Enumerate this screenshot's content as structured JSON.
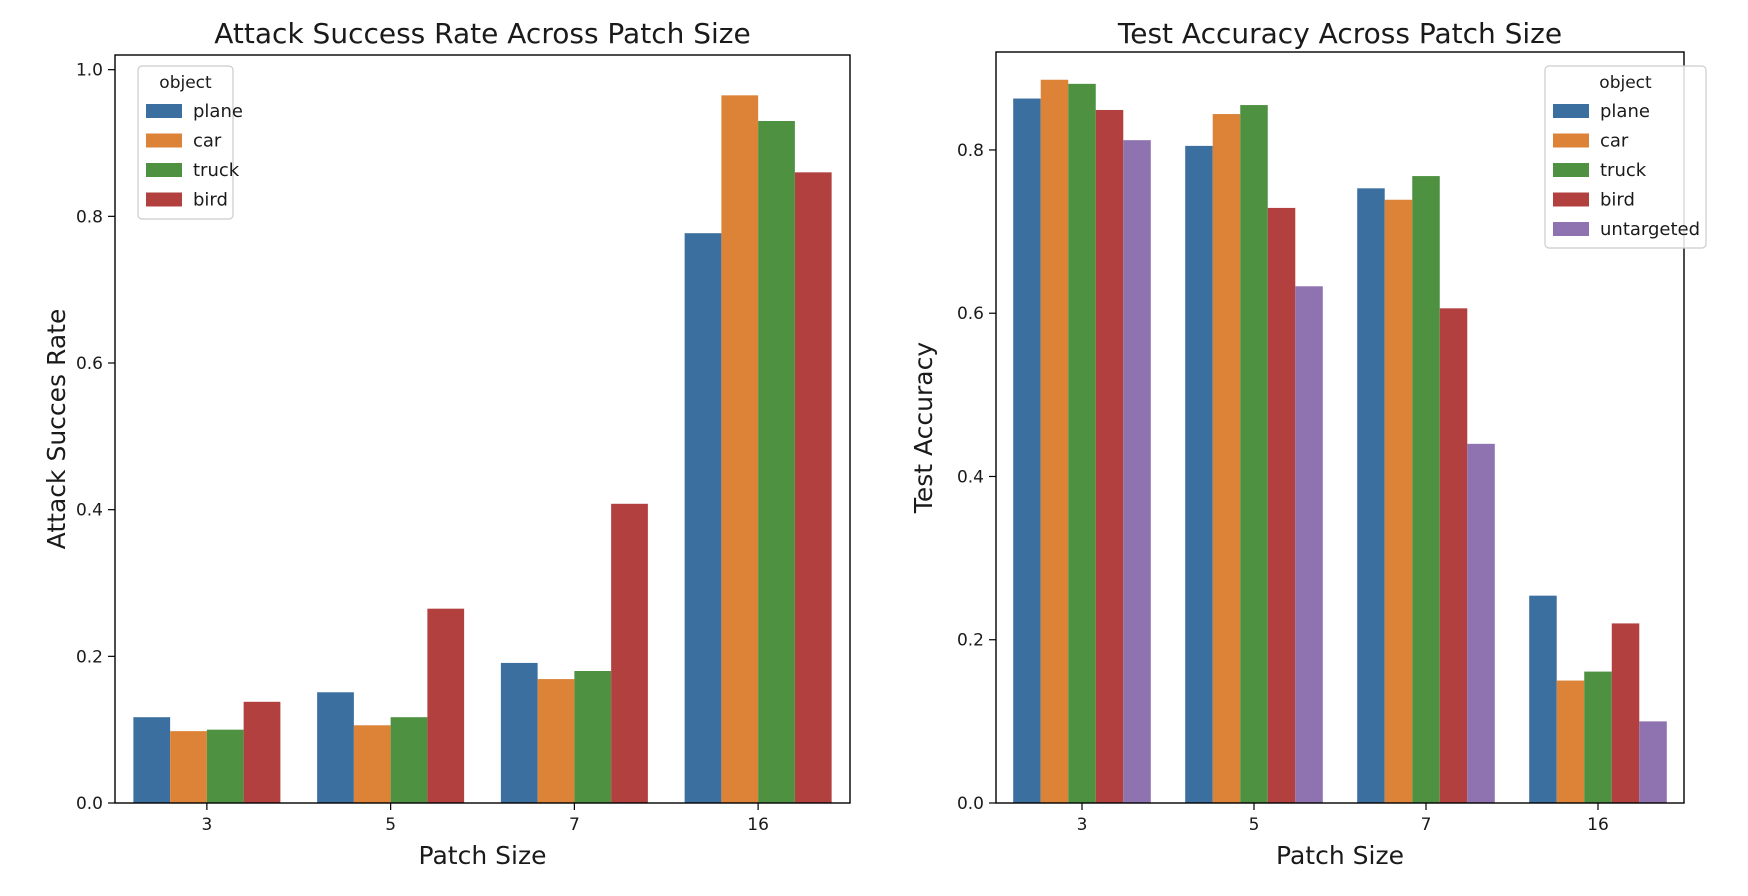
{
  "chart_data": [
    {
      "type": "bar",
      "title": "Attack Success Rate Across Patch Size",
      "xlabel": "Patch Size",
      "ylabel": "Attack Succes Rate",
      "categories": [
        "3",
        "5",
        "7",
        "16"
      ],
      "ylim": [
        0,
        1.02
      ],
      "yticks": [
        0.0,
        0.2,
        0.4,
        0.6,
        0.8,
        1.0
      ],
      "ytick_labels": [
        "0.0",
        "0.2",
        "0.4",
        "0.6",
        "0.8",
        "1.0"
      ],
      "grid": false,
      "legend": {
        "title": "object",
        "placement": "top-left"
      },
      "series": [
        {
          "name": "plane",
          "color": "#3b6fa0",
          "values": [
            0.117,
            0.151,
            0.191,
            0.777
          ]
        },
        {
          "name": "car",
          "color": "#dd8338",
          "values": [
            0.098,
            0.106,
            0.169,
            0.965
          ]
        },
        {
          "name": "truck",
          "color": "#4d9141",
          "values": [
            0.1,
            0.117,
            0.18,
            0.93
          ]
        },
        {
          "name": "bird",
          "color": "#b2403f",
          "values": [
            0.138,
            0.265,
            0.408,
            0.86
          ]
        }
      ]
    },
    {
      "type": "bar",
      "title": "Test Accuracy Across Patch Size",
      "xlabel": "Patch Size",
      "ylabel": "Test Accuracy",
      "categories": [
        "3",
        "5",
        "7",
        "16"
      ],
      "ylim": [
        0,
        0.92
      ],
      "yticks": [
        0.0,
        0.2,
        0.4,
        0.6,
        0.8
      ],
      "ytick_labels": [
        "0.0",
        "0.2",
        "0.4",
        "0.6",
        "0.8"
      ],
      "grid": false,
      "legend": {
        "title": "object",
        "placement": "top-right"
      },
      "series": [
        {
          "name": "plane",
          "color": "#3b6fa0",
          "values": [
            0.863,
            0.805,
            0.753,
            0.254
          ]
        },
        {
          "name": "car",
          "color": "#dd8338",
          "values": [
            0.886,
            0.844,
            0.739,
            0.15
          ]
        },
        {
          "name": "truck",
          "color": "#4d9141",
          "values": [
            0.881,
            0.855,
            0.768,
            0.161
          ]
        },
        {
          "name": "bird",
          "color": "#b2403f",
          "values": [
            0.849,
            0.729,
            0.606,
            0.22
          ]
        },
        {
          "name": "untargeted",
          "color": "#8f73b0",
          "values": [
            0.812,
            0.633,
            0.44,
            0.1
          ]
        }
      ]
    }
  ]
}
